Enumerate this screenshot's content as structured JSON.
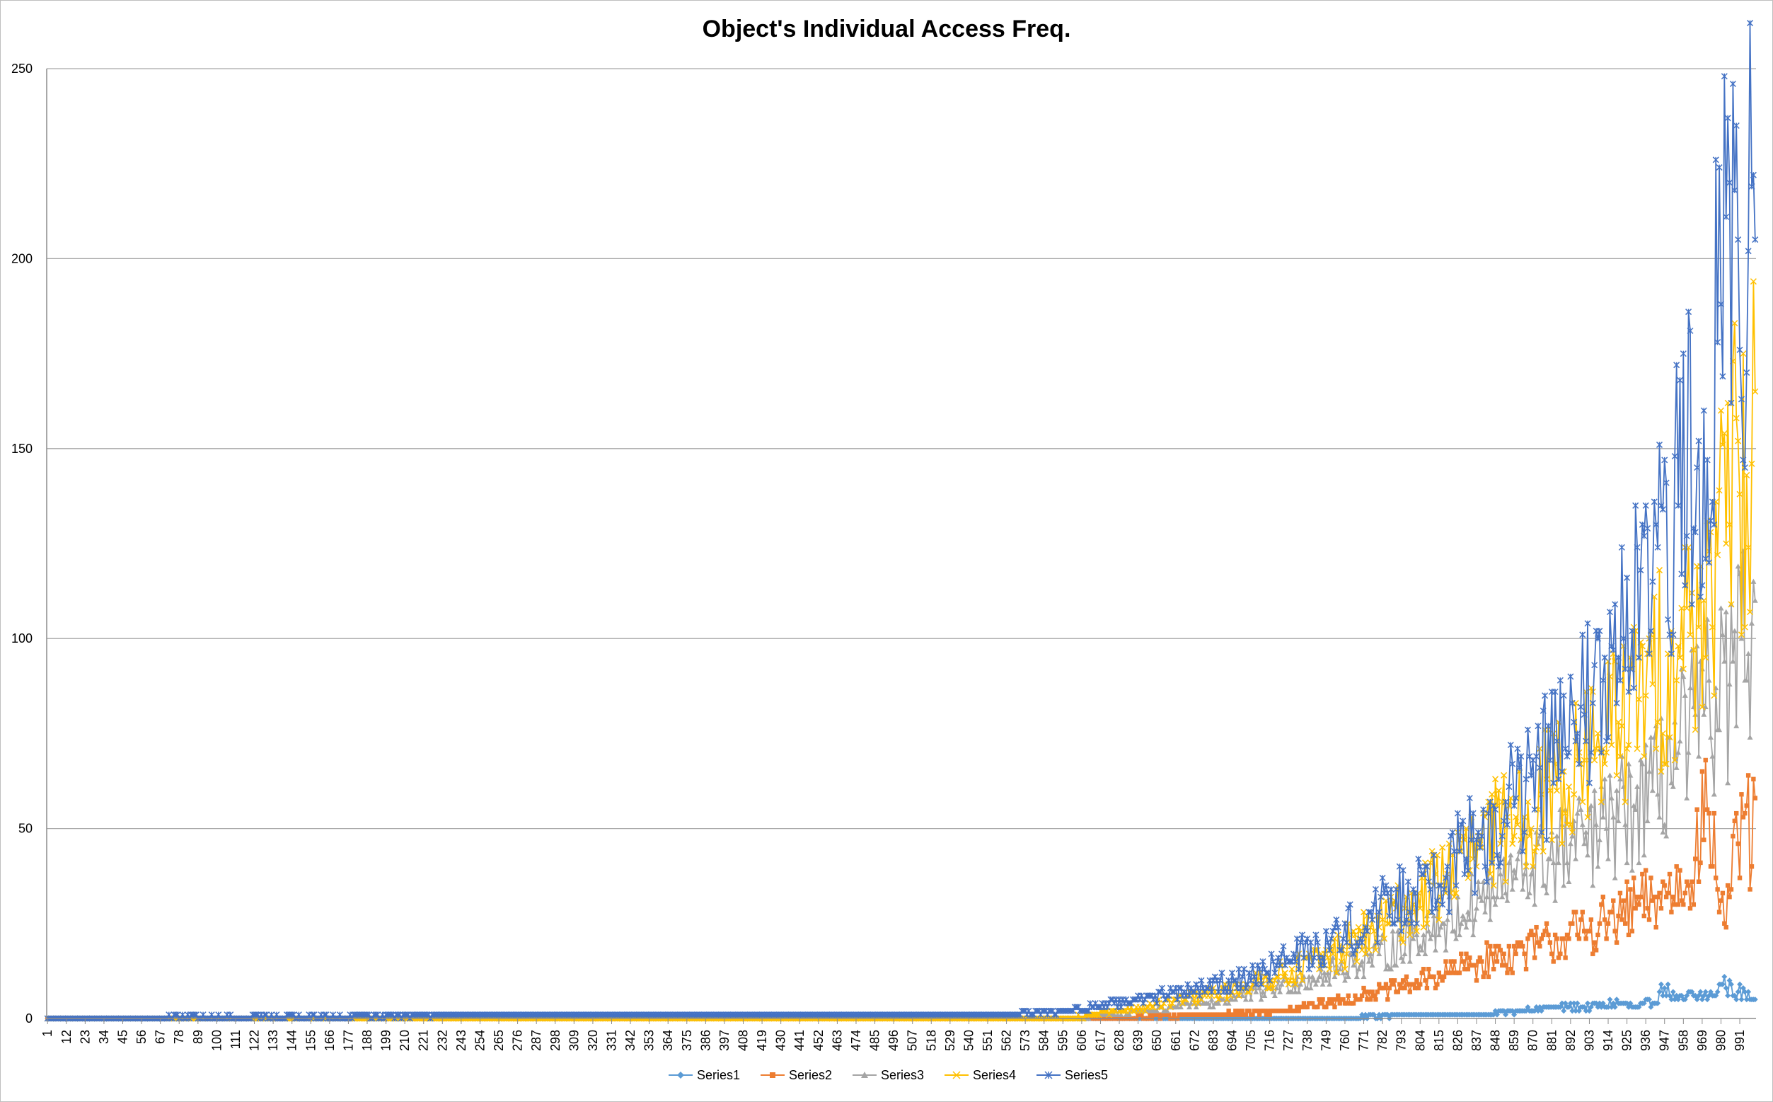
{
  "chart_data": {
    "type": "line",
    "title": "Object's Individual Access Freq.",
    "xlabel": "",
    "ylabel": "",
    "ylim": [
      0,
      250
    ],
    "yticks": [
      0,
      50,
      100,
      150,
      200,
      250
    ],
    "x_count": 1000,
    "xticks": [
      1,
      12,
      23,
      34,
      45,
      56,
      67,
      78,
      89,
      100,
      111,
      122,
      133,
      144,
      155,
      166,
      177,
      188,
      199,
      210,
      221,
      232,
      243,
      254,
      265,
      276,
      287,
      298,
      309,
      320,
      331,
      342,
      353,
      364,
      375,
      386,
      397,
      408,
      419,
      430,
      441,
      452,
      463,
      474,
      485,
      496,
      507,
      518,
      529,
      540,
      551,
      562,
      573,
      584,
      595,
      606,
      617,
      628,
      639,
      650,
      661,
      672,
      683,
      694,
      705,
      716,
      727,
      738,
      749,
      760,
      771,
      782,
      793,
      804,
      815,
      826,
      837,
      848,
      859,
      870,
      881,
      892,
      903,
      914,
      925,
      936,
      947,
      958,
      969,
      980,
      991
    ],
    "grid": "horizontal",
    "legend_position": "bottom",
    "series": [
      {
        "name": "Series1",
        "color": "#5b9bd5",
        "marker": "diamond",
        "points": [
          [
            1,
            0
          ],
          [
            760,
            0
          ],
          [
            800,
            1
          ],
          [
            840,
            1
          ],
          [
            860,
            2
          ],
          [
            880,
            3
          ],
          [
            900,
            3
          ],
          [
            920,
            4
          ],
          [
            930,
            3
          ],
          [
            940,
            4
          ],
          [
            947,
            8
          ],
          [
            955,
            5
          ],
          [
            965,
            6
          ],
          [
            975,
            6
          ],
          [
            981,
            9
          ],
          [
            990,
            7
          ],
          [
            1000,
            5
          ]
        ]
      },
      {
        "name": "Series2",
        "color": "#ed7d31",
        "marker": "square",
        "points": [
          [
            1,
            0
          ],
          [
            620,
            0
          ],
          [
            680,
            1
          ],
          [
            720,
            2
          ],
          [
            750,
            4
          ],
          [
            770,
            6
          ],
          [
            800,
            9
          ],
          [
            820,
            12
          ],
          [
            840,
            15
          ],
          [
            860,
            17
          ],
          [
            880,
            20
          ],
          [
            900,
            23
          ],
          [
            920,
            27
          ],
          [
            940,
            31
          ],
          [
            960,
            36
          ],
          [
            972,
            55
          ],
          [
            982,
            25
          ],
          [
            990,
            46
          ],
          [
            995,
            56
          ],
          [
            998,
            40
          ],
          [
            1000,
            58
          ]
        ]
      },
      {
        "name": "Series3",
        "color": "#a5a5a5",
        "marker": "triangle",
        "points": [
          [
            1,
            0
          ],
          [
            600,
            0
          ],
          [
            640,
            2
          ],
          [
            680,
            4
          ],
          [
            720,
            8
          ],
          [
            750,
            12
          ],
          [
            780,
            17
          ],
          [
            800,
            21
          ],
          [
            820,
            26
          ],
          [
            840,
            31
          ],
          [
            860,
            37
          ],
          [
            880,
            42
          ],
          [
            900,
            46
          ],
          [
            920,
            52
          ],
          [
            940,
            60
          ],
          [
            955,
            70
          ],
          [
            970,
            80
          ],
          [
            985,
            88
          ],
          [
            992,
            100
          ],
          [
            997,
            74
          ],
          [
            999,
            115
          ],
          [
            1000,
            110
          ]
        ]
      },
      {
        "name": "Series4",
        "color": "#ffc000",
        "marker": "x",
        "points": [
          [
            1,
            0
          ],
          [
            600,
            0
          ],
          [
            640,
            3
          ],
          [
            680,
            6
          ],
          [
            720,
            11
          ],
          [
            750,
            16
          ],
          [
            780,
            24
          ],
          [
            800,
            30
          ],
          [
            820,
            38
          ],
          [
            840,
            45
          ],
          [
            860,
            53
          ],
          [
            880,
            60
          ],
          [
            900,
            68
          ],
          [
            920,
            78
          ],
          [
            940,
            88
          ],
          [
            955,
            98
          ],
          [
            970,
            110
          ],
          [
            985,
            130
          ],
          [
            990,
            152
          ],
          [
            996,
            124
          ],
          [
            1000,
            165
          ]
        ]
      },
      {
        "name": "Series5",
        "color": "#4472c4",
        "marker": "star",
        "points": [
          [
            1,
            0
          ],
          [
            353,
            1
          ],
          [
            560,
            1
          ],
          [
            600,
            2
          ],
          [
            640,
            5
          ],
          [
            680,
            8
          ],
          [
            720,
            14
          ],
          [
            750,
            20
          ],
          [
            780,
            28
          ],
          [
            800,
            34
          ],
          [
            820,
            40
          ],
          [
            840,
            48
          ],
          [
            860,
            58
          ],
          [
            880,
            68
          ],
          [
            900,
            80
          ],
          [
            920,
            95
          ],
          [
            940,
            115
          ],
          [
            955,
            135
          ],
          [
            970,
            160
          ],
          [
            980,
            188
          ],
          [
            990,
            205
          ],
          [
            995,
            170
          ],
          [
            998,
            219
          ],
          [
            1000,
            205
          ]
        ]
      }
    ]
  }
}
